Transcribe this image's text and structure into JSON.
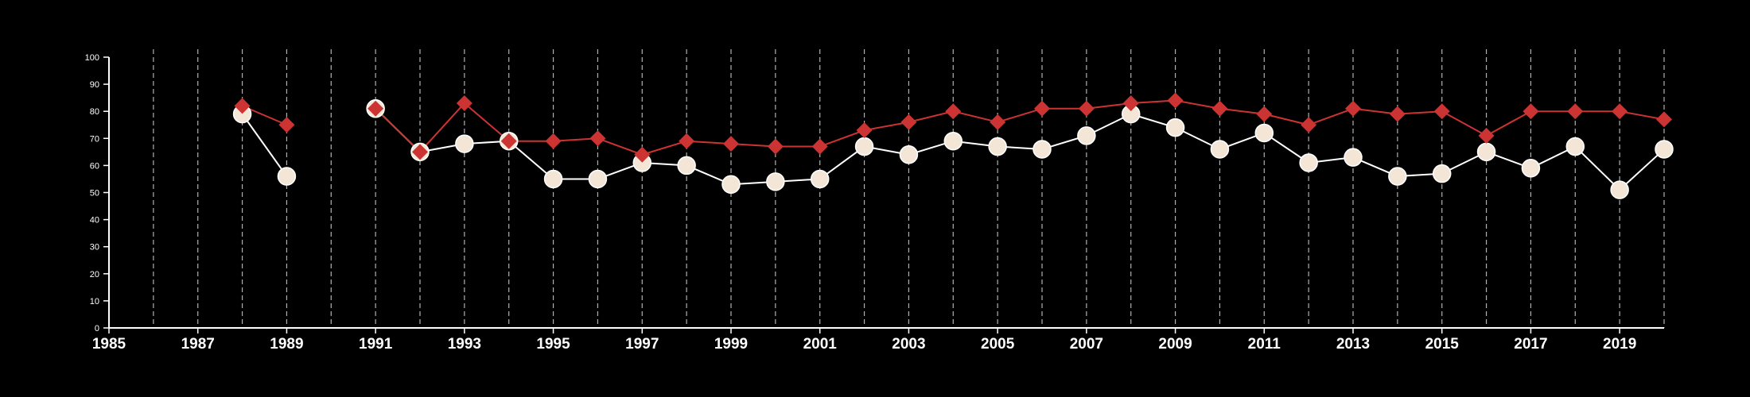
{
  "chart_data": {
    "type": "line",
    "title": "",
    "xlabel": "",
    "ylabel": "",
    "xlim": [
      1985,
      2020
    ],
    "ylim": [
      0,
      100
    ],
    "x_ticks": [
      1985,
      1987,
      1989,
      1991,
      1993,
      1995,
      1997,
      1999,
      2001,
      2003,
      2005,
      2007,
      2009,
      2011,
      2013,
      2015,
      2017,
      2019
    ],
    "x_tick_labels": [
      "1985",
      "1987",
      "1989",
      "1991",
      "1993",
      "1995",
      "1997",
      "1999",
      "2001",
      "2003",
      "2005",
      "2007",
      "2009",
      "2011",
      "2013",
      "2015",
      "2017",
      "2019"
    ],
    "y_ticks": [
      0,
      10,
      20,
      30,
      40,
      50,
      60,
      70,
      80,
      90,
      100
    ],
    "y_tick_labels": [
      "0",
      "10",
      "20",
      "30",
      "40",
      "50",
      "60",
      "70",
      "80",
      "90",
      "100"
    ],
    "vertical_grid_years": [
      1986,
      1987,
      1988,
      1989,
      1990,
      1991,
      1992,
      1993,
      1994,
      1995,
      1996,
      1997,
      1998,
      1999,
      2000,
      2001,
      2002,
      2003,
      2004,
      2005,
      2006,
      2007,
      2008,
      2009,
      2010,
      2011,
      2012,
      2013,
      2014,
      2015,
      2016,
      2017,
      2018,
      2019,
      2020
    ],
    "grid": "vertical dashed",
    "legend": "none",
    "series": [
      {
        "marker": "circle",
        "color": "#ffffff",
        "marker_fill": "#f3e6d6",
        "segments": [
          {
            "x": [
              1988,
              1989
            ],
            "y": [
              79,
              56
            ]
          },
          {
            "x": [
              1991,
              1992,
              1993,
              1994,
              1995,
              1996,
              1997,
              1998,
              1999,
              2000,
              2001,
              2002,
              2003,
              2004,
              2005,
              2006,
              2007,
              2008,
              2009,
              2010,
              2011,
              2012,
              2013,
              2014,
              2015,
              2016,
              2017,
              2018,
              2019,
              2020
            ],
            "y": [
              81,
              65,
              68,
              69,
              55,
              55,
              61,
              60,
              53,
              54,
              55,
              67,
              64,
              69,
              67,
              66,
              71,
              79,
              74,
              66,
              72,
              61,
              63,
              56,
              57,
              65,
              59,
              67,
              51,
              66
            ]
          }
        ]
      },
      {
        "marker": "diamond",
        "color": "#cc3333",
        "marker_fill": "#cc3333",
        "segments": [
          {
            "x": [
              1988,
              1989
            ],
            "y": [
              82,
              75
            ]
          },
          {
            "x": [
              1991,
              1992,
              1993,
              1994,
              1995,
              1996,
              1997,
              1998,
              1999,
              2000,
              2001,
              2002,
              2003,
              2004,
              2005,
              2006,
              2007,
              2008,
              2009,
              2010,
              2011,
              2012,
              2013,
              2014,
              2015,
              2016,
              2017,
              2018,
              2019,
              2020
            ],
            "y": [
              81,
              65,
              83,
              69,
              69,
              70,
              64,
              69,
              68,
              67,
              67,
              73,
              76,
              80,
              76,
              81,
              81,
              83,
              84,
              81,
              79,
              75,
              81,
              79,
              80,
              71,
              80,
              80,
              80,
              77
            ]
          }
        ]
      }
    ]
  }
}
